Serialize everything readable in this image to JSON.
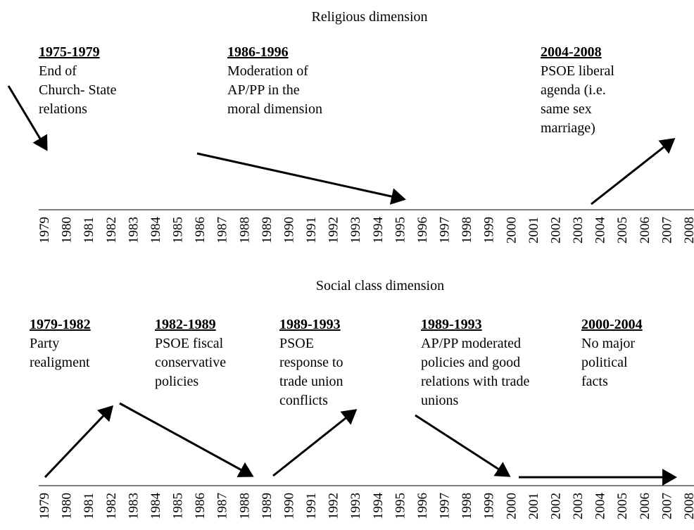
{
  "panels": [
    {
      "title": "Religious dimension",
      "years": [
        1979,
        1980,
        1981,
        1982,
        1983,
        1984,
        1985,
        1986,
        1987,
        1988,
        1989,
        1990,
        1991,
        1992,
        1993,
        1994,
        1995,
        1996,
        1997,
        1998,
        1999,
        2000,
        2001,
        2002,
        2003,
        2004,
        2005,
        2006,
        2007,
        2008
      ],
      "annotations": [
        {
          "period": "1975-1979",
          "lines": [
            "End of",
            "Church- State",
            "relations"
          ]
        },
        {
          "period": "1986-1996",
          "lines": [
            "Moderation of",
            "AP/PP in the",
            "moral dimension"
          ]
        },
        {
          "period": "2004-2008",
          "lines": [
            "PSOE liberal",
            "agenda (i.e.",
            "same sex",
            "marriage)"
          ]
        }
      ]
    },
    {
      "title": "Social class dimension",
      "years": [
        1979,
        1980,
        1981,
        1982,
        1983,
        1984,
        1985,
        1986,
        1987,
        1988,
        1989,
        1990,
        1991,
        1992,
        1993,
        1994,
        1995,
        1996,
        1997,
        1998,
        1999,
        2000,
        2001,
        2002,
        2003,
        2004,
        2005,
        2006,
        2007,
        2008
      ],
      "annotations": [
        {
          "period": "1979-1982",
          "lines": [
            "Party",
            "realigment"
          ]
        },
        {
          "period": "1982-1989",
          "lines": [
            "PSOE fiscal",
            "conservative",
            "policies"
          ]
        },
        {
          "period": "1989-1993",
          "lines": [
            "PSOE",
            "response to",
            "trade union",
            "conflicts"
          ]
        },
        {
          "period": "1989-1993",
          "lines": [
            "AP/PP moderated",
            "policies and good",
            "relations with trade",
            "unions"
          ]
        },
        {
          "period": "2000-2004",
          "lines": [
            "No major",
            "political",
            "facts"
          ]
        }
      ]
    }
  ]
}
